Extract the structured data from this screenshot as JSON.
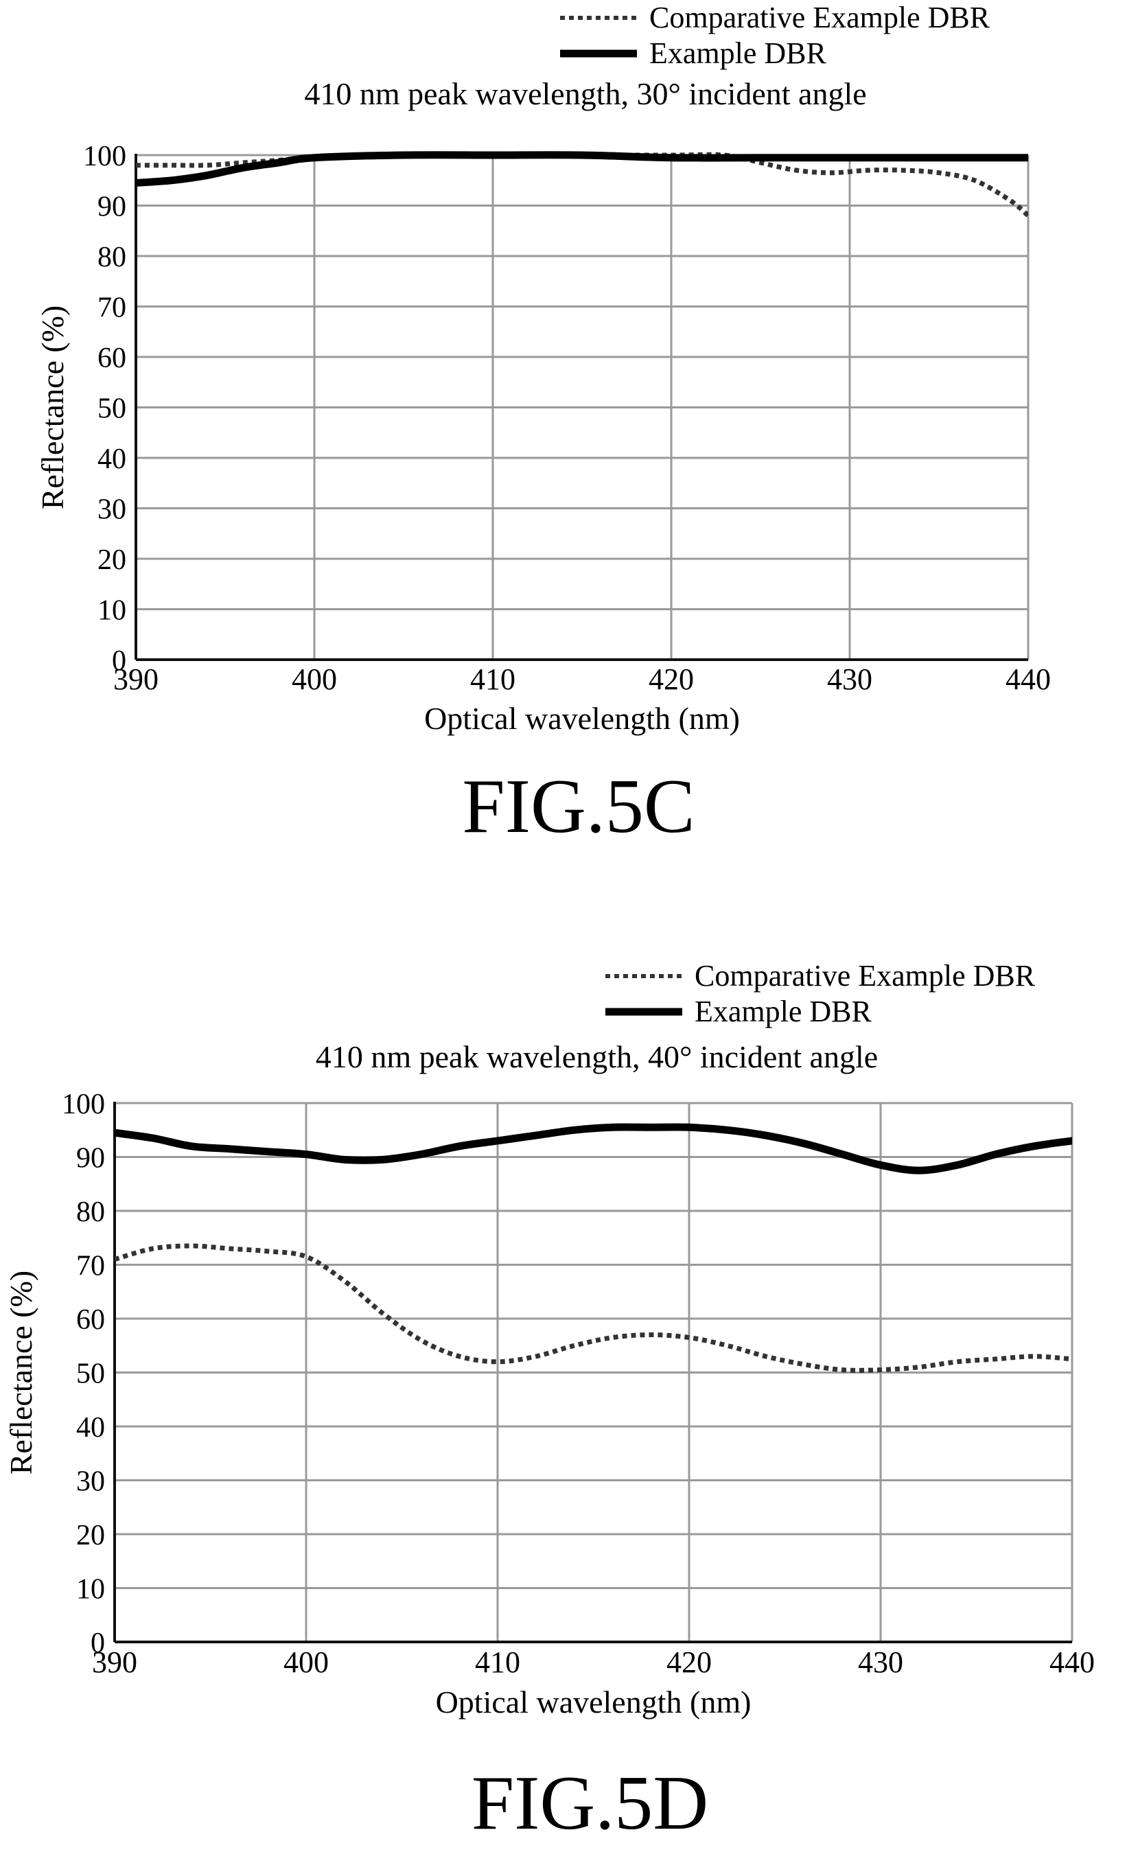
{
  "chart_data": [
    {
      "type": "line",
      "figure_label": "FIG.5C",
      "title": "410 nm peak wavelength, 30° incident angle",
      "xlabel": "Optical wavelength (nm)",
      "ylabel": "Reflectance (%)",
      "xlim": [
        390,
        440
      ],
      "ylim": [
        0,
        100
      ],
      "x_ticks": [
        "390",
        "400",
        "410",
        "420",
        "430",
        "440"
      ],
      "y_ticks": [
        "0",
        "10",
        "20",
        "30",
        "40",
        "50",
        "60",
        "70",
        "80",
        "90",
        "100"
      ],
      "grid": true,
      "legend_position": "top-right",
      "series": [
        {
          "name": "Comparative Example DBR",
          "style": "dotted",
          "color": "#333333",
          "x": [
            390,
            392,
            394,
            396,
            398,
            400,
            405,
            410,
            415,
            420,
            423,
            425,
            427,
            429,
            431,
            433,
            435,
            437,
            439,
            440
          ],
          "y": [
            98,
            98,
            98,
            98.5,
            99,
            99.5,
            100,
            100,
            100,
            100,
            100,
            98.5,
            97,
            96.5,
            97,
            97,
            96.5,
            95,
            91,
            88
          ]
        },
        {
          "name": "Example DBR",
          "style": "solid",
          "color": "#000000",
          "x": [
            390,
            392,
            394,
            396,
            398,
            400,
            405,
            410,
            415,
            420,
            425,
            430,
            435,
            440
          ],
          "y": [
            94.5,
            95,
            96,
            97.5,
            98.5,
            99.5,
            100,
            100,
            100,
            99.5,
            99.5,
            99.5,
            99.5,
            99.5
          ]
        }
      ]
    },
    {
      "type": "line",
      "figure_label": "FIG.5D",
      "title": "410 nm peak wavelength, 40° incident angle",
      "xlabel": "Optical wavelength (nm)",
      "ylabel": "Reflectance (%)",
      "xlim": [
        390,
        440
      ],
      "ylim": [
        0,
        100
      ],
      "x_ticks": [
        "390",
        "400",
        "410",
        "420",
        "430",
        "440"
      ],
      "y_ticks": [
        "0",
        "10",
        "20",
        "30",
        "40",
        "50",
        "60",
        "70",
        "80",
        "90",
        "100"
      ],
      "grid": true,
      "legend_position": "top-right",
      "series": [
        {
          "name": "Comparative Example DBR",
          "style": "dotted",
          "color": "#333333",
          "x": [
            390,
            392,
            394,
            396,
            398,
            400,
            402,
            404,
            406,
            408,
            410,
            412,
            414,
            416,
            418,
            420,
            422,
            424,
            426,
            428,
            430,
            432,
            434,
            436,
            438,
            440
          ],
          "y": [
            71,
            73,
            73.5,
            73,
            72.5,
            71.5,
            67,
            61,
            56,
            53,
            52,
            53,
            55,
            56.5,
            57,
            56.5,
            55,
            53,
            51.5,
            50.5,
            50.5,
            51,
            52,
            52.5,
            53,
            52.5
          ]
        },
        {
          "name": "Example DBR",
          "style": "solid",
          "color": "#000000",
          "x": [
            390,
            392,
            394,
            396,
            398,
            400,
            402,
            404,
            406,
            408,
            410,
            412,
            414,
            416,
            418,
            420,
            422,
            424,
            426,
            428,
            430,
            432,
            434,
            436,
            438,
            440
          ],
          "y": [
            94.5,
            93.5,
            92,
            91.5,
            91,
            90.5,
            89.5,
            89.5,
            90.5,
            92,
            93,
            94,
            95,
            95.5,
            95.5,
            95.5,
            95,
            94,
            92.5,
            90.5,
            88.5,
            87.5,
            88.5,
            90.5,
            92,
            93
          ]
        }
      ]
    }
  ]
}
